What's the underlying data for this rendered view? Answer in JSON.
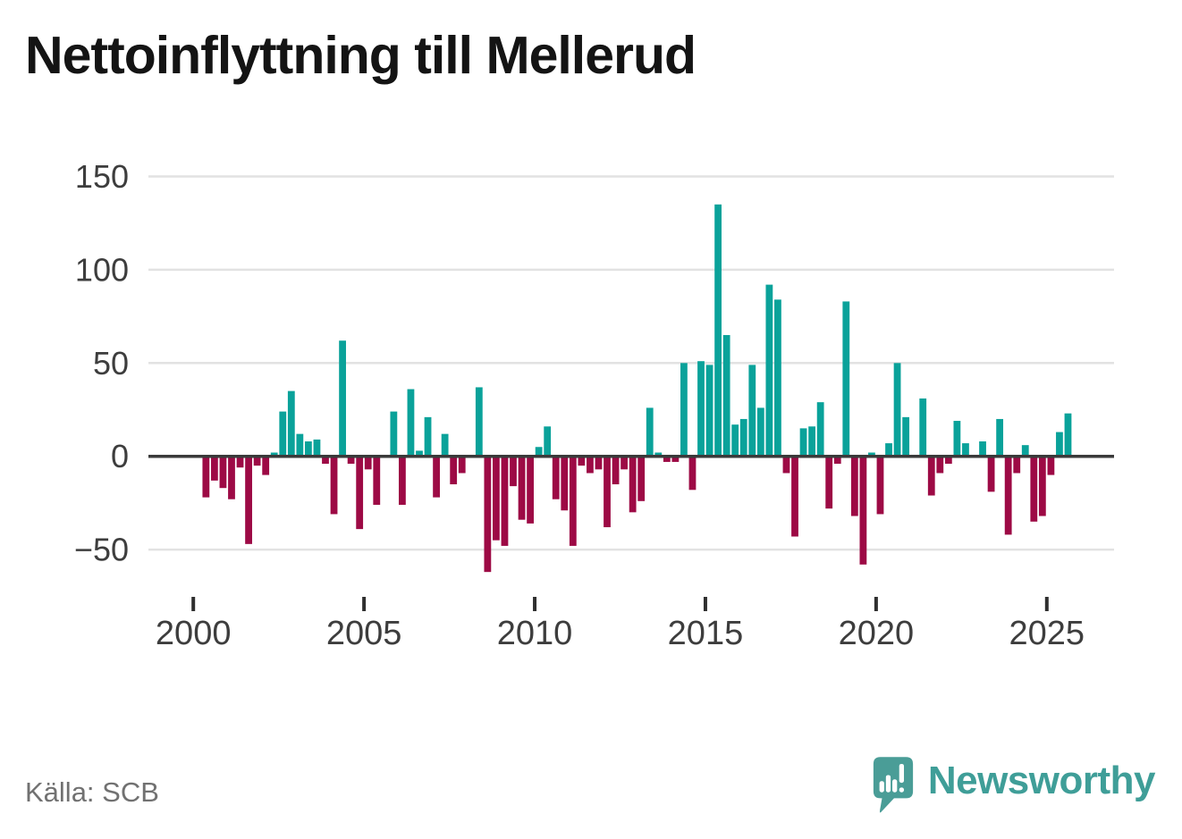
{
  "title": "Nettoinflyttning till Mellerud",
  "source": "Källa: SCB",
  "branding": {
    "wordmark": "Newsworthy"
  },
  "colors": {
    "positive": "#0aa29a",
    "negative": "#9d0a45",
    "grid": "#e2e2e2",
    "zero_axis": "#3a3a3a",
    "tick_text": "#3d3d3d",
    "title_text": "#141414",
    "source_text": "#717171",
    "brand_teal": "#4a9d97"
  },
  "chart_data": {
    "type": "bar",
    "title": "Nettoinflyttning till Mellerud",
    "frequency": "quarterly",
    "x_start": "2000-Q1",
    "x_end": "2025-Q3",
    "x_ticks": [
      2000,
      2005,
      2010,
      2015,
      2020,
      2025
    ],
    "y_ticks": [
      150,
      100,
      50,
      0,
      -50
    ],
    "ylim": [
      -70,
      160
    ],
    "grid": "horizontal",
    "legend": "none",
    "series": [
      {
        "name": "Nettoinflyttning",
        "values": [
          0,
          -22,
          -13,
          -17,
          -23,
          -6,
          -47,
          -5,
          -10,
          2,
          24,
          35,
          12,
          8,
          9,
          -4,
          -31,
          62,
          -4,
          -39,
          -7,
          -26,
          0,
          24,
          -26,
          36,
          3,
          21,
          -22,
          12,
          -15,
          -9,
          0,
          37,
          -62,
          -45,
          -48,
          -16,
          -34,
          -36,
          5,
          16,
          -23,
          -29,
          -48,
          -5,
          -9,
          -7,
          -38,
          -15,
          -7,
          -30,
          -24,
          26,
          2,
          -3,
          -3,
          50,
          -18,
          51,
          49,
          135,
          65,
          17,
          20,
          49,
          26,
          92,
          84,
          -9,
          -43,
          15,
          16,
          29,
          -28,
          -4,
          83,
          -32,
          -58,
          2,
          -31,
          7,
          50,
          21,
          0,
          31,
          -21,
          -9,
          -4,
          19,
          7,
          0,
          8,
          -19,
          20,
          -42,
          -9,
          6,
          -35,
          -32,
          -10,
          13,
          23
        ]
      }
    ]
  }
}
